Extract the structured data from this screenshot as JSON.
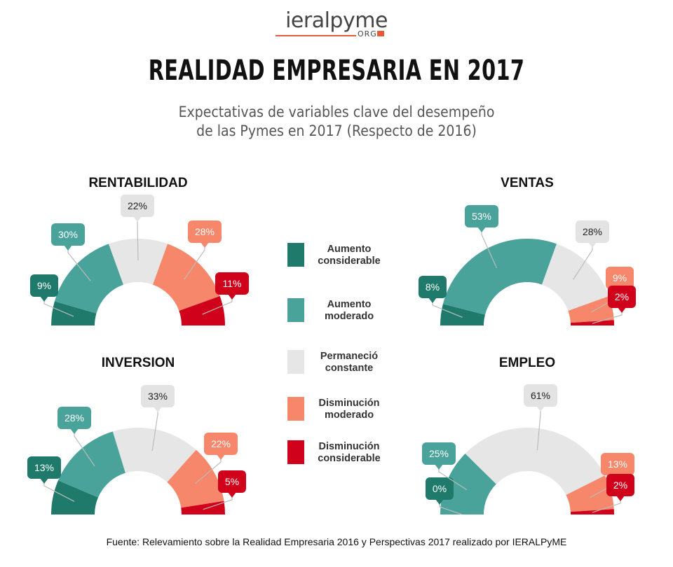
{
  "logo": {
    "main": "ieralpyme",
    "sub": "ORG"
  },
  "title": "REALIDAD EMPRESARIA EN 2017",
  "subtitle_line1": "Expectativas de variables clave del desempeño",
  "subtitle_line2": "de las Pymes en 2017 (Respecto de 2016)",
  "footer": "Fuente: Relevamiento sobre la Realidad Empresaria 2016 y Perspectivas 2017 realizado por IERALPyME",
  "legend": [
    {
      "line1": "Aumento",
      "line2": "considerable",
      "color": "#1f7a6c"
    },
    {
      "line1": "Aumento",
      "line2": "moderado",
      "color": "#4aa39a"
    },
    {
      "line1": "Permaneció",
      "line2": "constante",
      "color": "#e6e6e6"
    },
    {
      "line1": "Disminución",
      "line2": "moderado",
      "color": "#f7876a"
    },
    {
      "line1": "Disminución",
      "line2": "considerable",
      "color": "#d0021b"
    }
  ],
  "chart_data": [
    {
      "type": "pie",
      "title": "RENTABILIDAD",
      "categories": [
        "Aumento considerable",
        "Aumento moderado",
        "Permaneció constante",
        "Disminución moderado",
        "Disminución considerable"
      ],
      "values": [
        9,
        30,
        22,
        28,
        11
      ],
      "labels": [
        "9%",
        "30%",
        "22%",
        "28%",
        "11%"
      ]
    },
    {
      "type": "pie",
      "title": "VENTAS",
      "categories": [
        "Aumento considerable",
        "Aumento moderado",
        "Permaneció constante",
        "Disminución moderado",
        "Disminución considerable"
      ],
      "values": [
        8,
        53,
        28,
        9,
        2
      ],
      "labels": [
        "8%",
        "53%",
        "28%",
        "9%",
        "2%"
      ]
    },
    {
      "type": "pie",
      "title": "INVERSION",
      "categories": [
        "Aumento considerable",
        "Aumento moderado",
        "Permaneció constante",
        "Disminución moderado",
        "Disminución considerable"
      ],
      "values": [
        13,
        28,
        33,
        22,
        5
      ],
      "labels": [
        "13%",
        "28%",
        "33%",
        "22%",
        "5%"
      ]
    },
    {
      "type": "pie",
      "title": "EMPLEO",
      "categories": [
        "Aumento considerable",
        "Aumento moderado",
        "Permaneció constante",
        "Disminución moderado",
        "Disminución considerable"
      ],
      "values": [
        0,
        25,
        61,
        13,
        2
      ],
      "labels": [
        "0%",
        "25%",
        "61%",
        "13%",
        "2%"
      ]
    }
  ]
}
